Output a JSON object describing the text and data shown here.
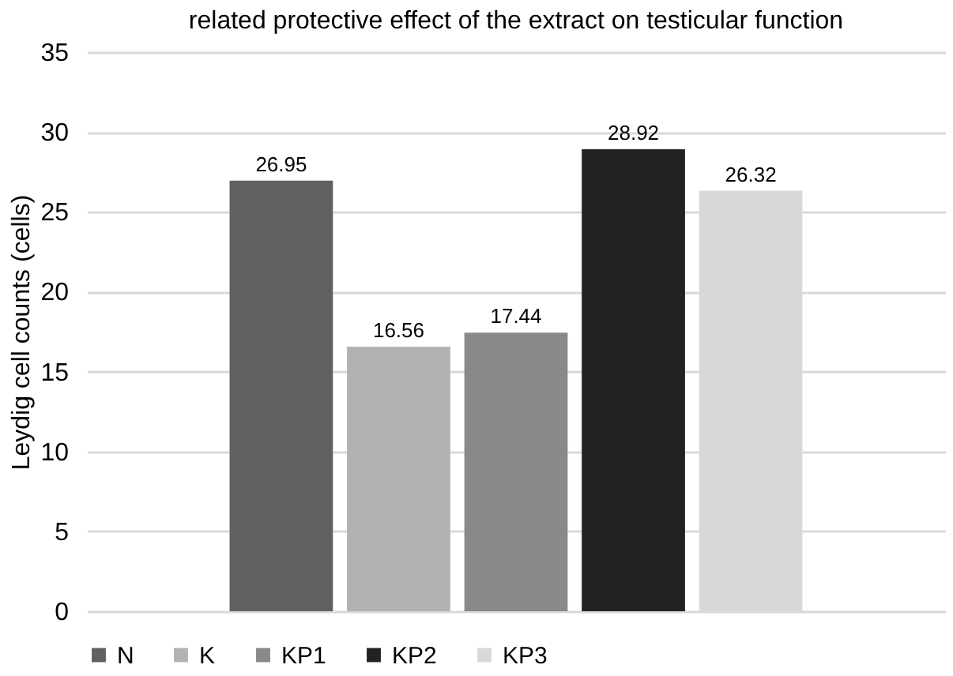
{
  "chart_data": {
    "type": "bar",
    "title": "related protective effect of the extract on testicular function",
    "ylabel": "Leydig cell counts (cells)",
    "categories": [
      null
    ],
    "series": [
      {
        "name": "N",
        "color": "#606060",
        "values": [
          26.95
        ]
      },
      {
        "name": "K",
        "color": "#b2b2b2",
        "values": [
          16.56
        ]
      },
      {
        "name": "KP1",
        "color": "#898989",
        "values": [
          17.44
        ]
      },
      {
        "name": "KP2",
        "color": "#222222",
        "values": [
          28.92
        ]
      },
      {
        "name": "KP3",
        "color": "#d8d8d8",
        "values": [
          26.32
        ]
      }
    ],
    "ylim": [
      0,
      35
    ],
    "yticks": [
      0,
      5,
      10,
      15,
      20,
      25,
      30,
      35
    ],
    "grid": "y",
    "legend": "bottom",
    "data_labels": true
  }
}
